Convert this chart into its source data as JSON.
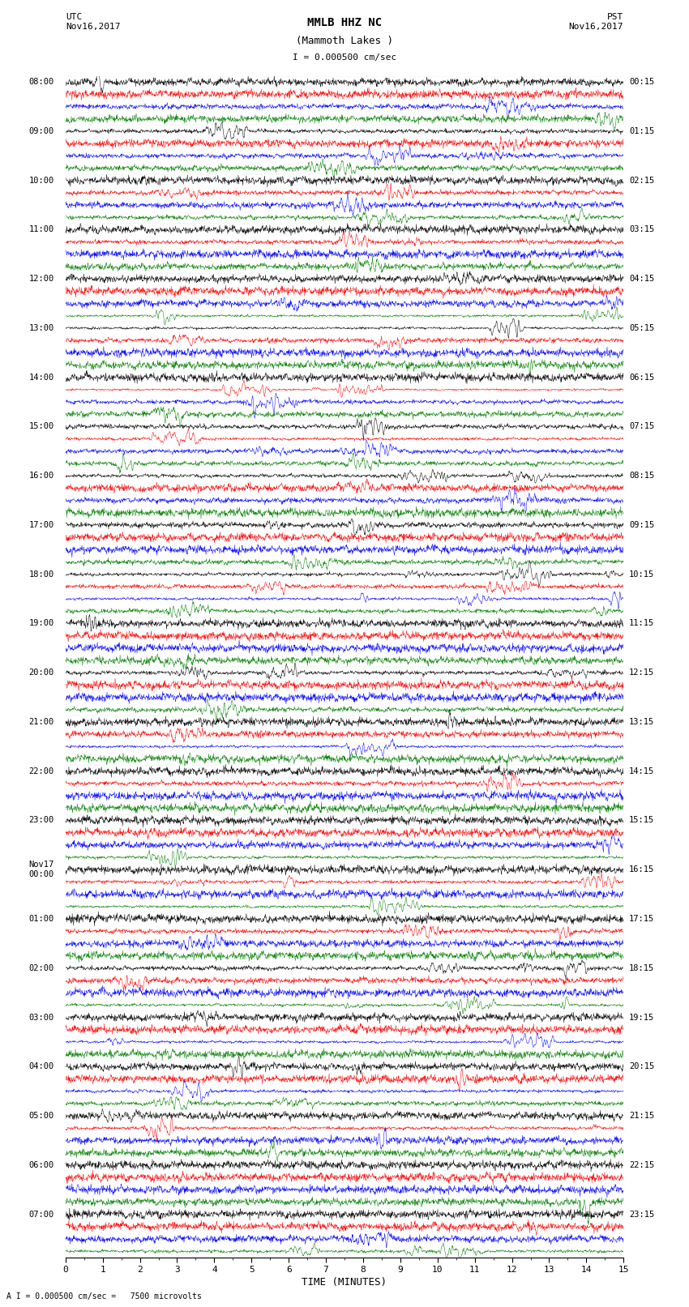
{
  "title_line1": "MMLB HHZ NC",
  "title_line2": "(Mammoth Lakes )",
  "scale_label": "I = 0.000500 cm/sec",
  "bottom_label": "A I = 0.000500 cm/sec =   7500 microvolts",
  "xlabel": "TIME (MINUTES)",
  "left_header": "UTC\nNov16,2017",
  "right_header": "PST\nNov16,2017",
  "left_times": [
    "08:00",
    "09:00",
    "10:00",
    "11:00",
    "12:00",
    "13:00",
    "14:00",
    "15:00",
    "16:00",
    "17:00",
    "18:00",
    "19:00",
    "20:00",
    "21:00",
    "22:00",
    "23:00",
    "Nov17\n00:00",
    "01:00",
    "02:00",
    "03:00",
    "04:00",
    "05:00",
    "06:00",
    "07:00"
  ],
  "right_times": [
    "00:15",
    "01:15",
    "02:15",
    "03:15",
    "04:15",
    "05:15",
    "06:15",
    "07:15",
    "08:15",
    "09:15",
    "10:15",
    "11:15",
    "12:15",
    "13:15",
    "14:15",
    "15:15",
    "16:15",
    "17:15",
    "18:15",
    "19:15",
    "20:15",
    "21:15",
    "22:15",
    "23:15"
  ],
  "trace_colors": [
    "black",
    "red",
    "blue",
    "green"
  ],
  "n_hours": 24,
  "traces_per_hour": 4,
  "n_minutes": 15,
  "samples_per_row": 1800,
  "background_color": "white",
  "noise_seed": 42
}
